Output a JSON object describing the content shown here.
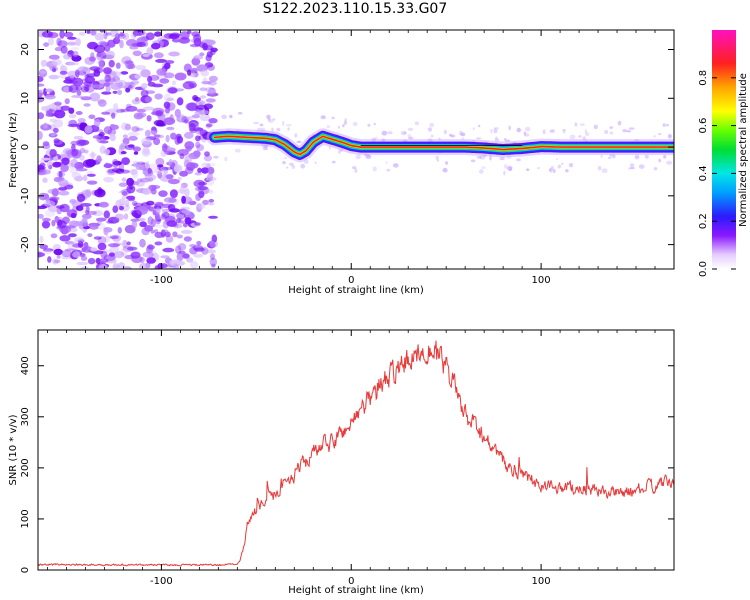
{
  "title": "S122.2023.110.15.33.G07",
  "colors": {
    "noise": "#7a12ff",
    "signal_core": "#ff1a1a",
    "snr_line": "#e83a3a",
    "axis": "#000000"
  },
  "chart_data": [
    {
      "type": "heatmap",
      "xlabel": "Height of straight line (km)",
      "ylabel": "Frequency (Hz)",
      "xlim": [
        -165,
        170
      ],
      "ylim": [
        -25,
        24
      ],
      "x_ticks": [
        -100,
        0,
        100
      ],
      "x_tick_labels": [
        "-100",
        "0",
        "100"
      ],
      "y_ticks": [
        -20,
        -10,
        0,
        10,
        20
      ],
      "y_tick_labels": [
        "-20",
        "-10",
        "0",
        "10",
        "20"
      ],
      "noise_region_x": [
        -165,
        -72
      ],
      "signal_start_x": -72,
      "ridge": {
        "x": [
          -72,
          -65,
          -55,
          -45,
          -40,
          -35,
          -30,
          -27,
          -24,
          -20,
          -15,
          -10,
          -5,
          0,
          5,
          20,
          40,
          60,
          70,
          80,
          90,
          100,
          110,
          120,
          140,
          160,
          170
        ],
        "y": [
          2.0,
          2.2,
          2.0,
          1.8,
          1.5,
          0.5,
          -1.0,
          -1.5,
          -0.8,
          1.0,
          2.2,
          1.6,
          1.0,
          0.3,
          0.0,
          0.0,
          0.0,
          0.0,
          -0.2,
          -0.5,
          -0.3,
          0.1,
          0.0,
          0.0,
          0.0,
          0.0,
          0.0
        ]
      },
      "colorbar": {
        "label": "Normalized spectral amplitude",
        "range": [
          0,
          1
        ],
        "ticks": [
          0.0,
          0.2,
          0.4,
          0.6,
          0.8
        ],
        "tick_labels": [
          "0.0",
          "0.2",
          "0.4",
          "0.6",
          "0.8"
        ],
        "colormap": "gist_ncar"
      }
    },
    {
      "type": "line",
      "xlabel": "Height of straight line (km)",
      "ylabel": "SNR (10 * v/v)",
      "xlim": [
        -165,
        170
      ],
      "ylim": [
        0,
        470
      ],
      "x_ticks": [
        -100,
        0,
        100
      ],
      "x_tick_labels": [
        "-100",
        "0",
        "100"
      ],
      "y_ticks": [
        0,
        100,
        200,
        300,
        400
      ],
      "y_tick_labels": [
        "0",
        "100",
        "200",
        "300",
        "400"
      ],
      "series": [
        {
          "color": "#e83a3a",
          "x": [
            -165,
            -150,
            -130,
            -110,
            -90,
            -70,
            -60,
            -57,
            -55,
            -50,
            -40,
            -30,
            -20,
            -10,
            0,
            10,
            20,
            30,
            35,
            40,
            45,
            50,
            55,
            60,
            70,
            80,
            90,
            100,
            120,
            140,
            160,
            170
          ],
          "y": [
            10,
            11,
            10,
            10,
            10,
            10,
            12,
            40,
            95,
            120,
            150,
            190,
            230,
            250,
            290,
            340,
            380,
            410,
            430,
            440,
            420,
            390,
            350,
            300,
            260,
            210,
            185,
            165,
            160,
            150,
            165,
            175
          ]
        }
      ]
    }
  ]
}
